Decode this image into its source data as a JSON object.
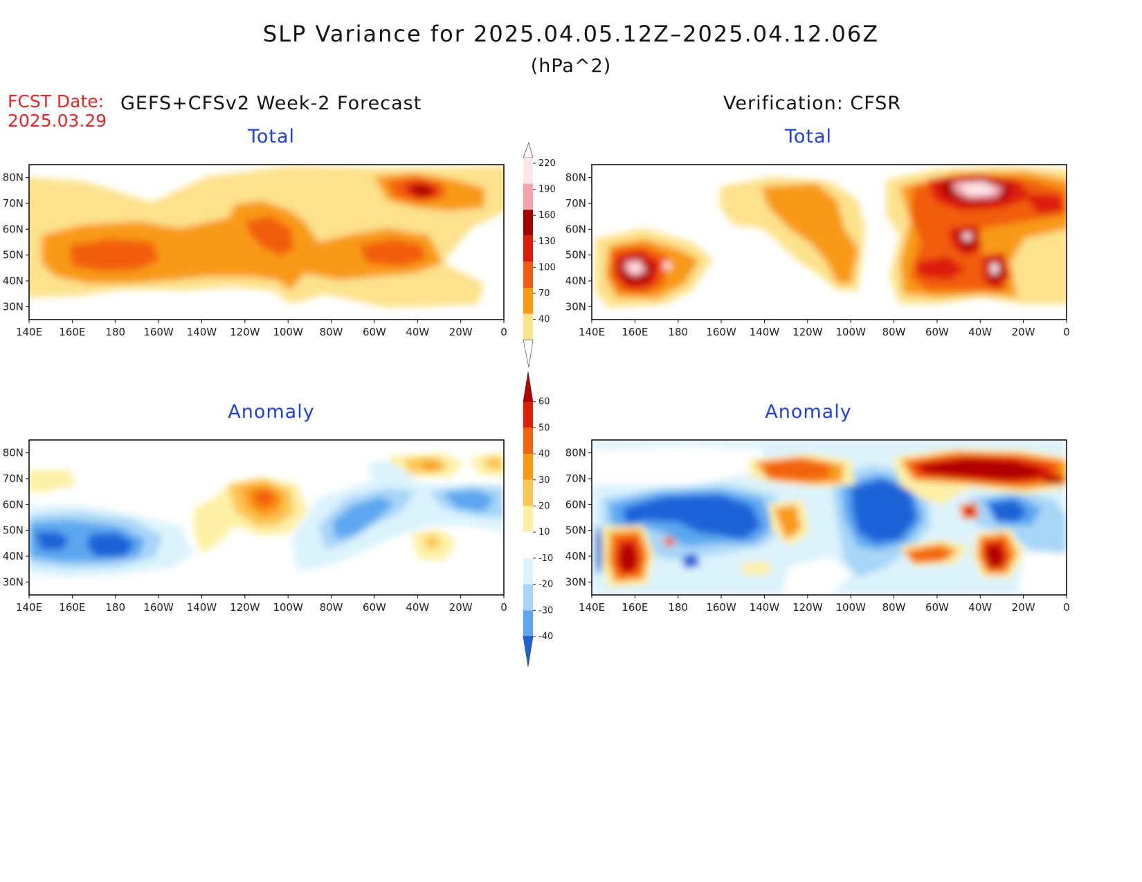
{
  "title": "SLP Variance for 2025.04.05.12Z–2025.04.12.06Z",
  "subtitle": "(hPa^2)",
  "fcst_date": {
    "label": "FCST Date:",
    "value": "2025.03.29"
  },
  "left_header": "GEFS+CFSv2 Week-2 Forecast",
  "right_header": "Verification: CFSR",
  "panels": [
    {
      "id": "forecast-total",
      "title": "Total"
    },
    {
      "id": "verification-total",
      "title": "Total"
    },
    {
      "id": "forecast-anomaly",
      "title": "Anomaly"
    },
    {
      "id": "verification-anomaly",
      "title": "Anomaly"
    }
  ],
  "lat_labels": [
    "80N",
    "70N",
    "60N",
    "50N",
    "40N",
    "30N"
  ],
  "lon_labels": [
    "140E",
    "160E",
    "180",
    "160W",
    "140W",
    "120W",
    "100W",
    "80W",
    "60W",
    "40W",
    "20W",
    "0"
  ],
  "total_colorbar": {
    "levels": [
      "220",
      "190",
      "160",
      "130",
      "100",
      "70",
      "40"
    ],
    "colors": [
      "#fde6e8",
      "#f4a3aa",
      "#a50000",
      "#dd1a0a",
      "#f25d10",
      "#f89a12",
      "#fde28c"
    ]
  },
  "anomaly_colorbar": {
    "levels": [
      "60",
      "50",
      "40",
      "30",
      "20",
      "10",
      "-10",
      "-20",
      "-30",
      "-40"
    ],
    "colors": [
      "#b40000",
      "#e01f08",
      "#f2640c",
      "#f99a15",
      "#fbc552",
      "#fdf0a5",
      "#ffffff",
      "#dcf3fd",
      "#a8d6f7",
      "#5ba7f0",
      "#1a64d8"
    ]
  },
  "chart_data": [
    {
      "type": "map",
      "title": "Total",
      "group": "GEFS+CFSv2 Week-2 Forecast",
      "units": "hPa^2",
      "lon_range": [
        "140E",
        "0"
      ],
      "lat_range": [
        "30N",
        "80N"
      ],
      "contour_levels": [
        40,
        70,
        100,
        130,
        160,
        190,
        220
      ],
      "features": [
        {
          "center": [
            "40W",
            "75N"
          ],
          "level": 160
        },
        {
          "center": [
            "160W",
            "48N"
          ],
          "level": 100
        },
        {
          "center": [
            "110W",
            "55N"
          ],
          "level": 100
        },
        {
          "center": [
            "50W",
            "47N"
          ],
          "level": 100
        }
      ]
    },
    {
      "type": "map",
      "title": "Total",
      "group": "Verification: CFSR",
      "units": "hPa^2",
      "lon_range": [
        "140E",
        "0"
      ],
      "lat_range": [
        "30N",
        "80N"
      ],
      "contour_levels": [
        40,
        70,
        100,
        130,
        160,
        190,
        220
      ],
      "features": [
        {
          "center": [
            "45W",
            "77N"
          ],
          "level": 220
        },
        {
          "center": [
            "165E",
            "45N"
          ],
          "level": 220
        },
        {
          "center": [
            "175E",
            "46N"
          ],
          "level": 190
        },
        {
          "center": [
            "45W",
            "57N"
          ],
          "level": 190
        },
        {
          "center": [
            "33W",
            "45N"
          ],
          "level": 190
        },
        {
          "center": [
            "60W",
            "45N"
          ],
          "level": 160
        },
        {
          "center": [
            "5W",
            "70N"
          ],
          "level": 160
        }
      ]
    },
    {
      "type": "map",
      "title": "Anomaly",
      "group": "GEFS+CFSv2 Week-2 Forecast",
      "units": "hPa^2",
      "lon_range": [
        "140E",
        "0"
      ],
      "lat_range": [
        "30N",
        "80N"
      ],
      "contour_levels": [
        -40,
        -30,
        -20,
        -10,
        10,
        20,
        30,
        40,
        50,
        60
      ],
      "features": [
        {
          "center": [
            "175E",
            "44N"
          ],
          "level": -40
        },
        {
          "center": [
            "110W",
            "62N"
          ],
          "level": 40
        },
        {
          "center": [
            "75W",
            "55N"
          ],
          "level": -30
        },
        {
          "center": [
            "30W",
            "63N"
          ],
          "level": -30
        },
        {
          "center": [
            "33W",
            "75N"
          ],
          "level": 30
        },
        {
          "center": [
            "40W",
            "45N"
          ],
          "level": 20
        }
      ]
    },
    {
      "type": "map",
      "title": "Anomaly",
      "group": "Verification: CFSR",
      "units": "hPa^2",
      "lon_range": [
        "140E",
        "0"
      ],
      "lat_range": [
        "30N",
        "80N"
      ],
      "contour_levels": [
        -40,
        -30,
        -20,
        -10,
        10,
        20,
        30,
        40,
        50,
        60
      ],
      "features": [
        {
          "center": [
            "45W",
            "73N"
          ],
          "level": 60
        },
        {
          "center": [
            "160E",
            "38N"
          ],
          "level": 60
        },
        {
          "center": [
            "35W",
            "43N"
          ],
          "level": 60
        },
        {
          "center": [
            "145W",
            "57N"
          ],
          "level": -40
        },
        {
          "center": [
            "90W",
            "55N"
          ],
          "level": -40
        },
        {
          "center": [
            "60W",
            "43N"
          ],
          "level": 50
        },
        {
          "center": [
            "120W",
            "55N"
          ],
          "level": 40
        },
        {
          "center": [
            "130W",
            "73N"
          ],
          "level": 40
        }
      ]
    }
  ]
}
